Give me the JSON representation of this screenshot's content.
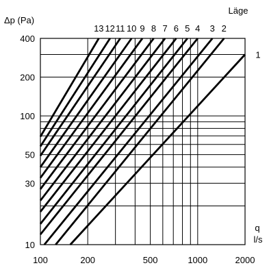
{
  "chart_data": {
    "type": "line",
    "title": "",
    "xlabel": "q",
    "xlabel_unit": "l/s",
    "ylabel": "Δp (Pa)",
    "legend_title": "Läge",
    "x_scale": "log",
    "y_scale": "log",
    "xlim": [
      100,
      2000
    ],
    "ylim": [
      10,
      400
    ],
    "x_ticks": [
      "100",
      "200",
      "500",
      "1000",
      "2000"
    ],
    "y_ticks": [
      "400",
      "200",
      "100",
      "50",
      "30",
      "10"
    ],
    "series": [
      {
        "name": "13",
        "points": [
          [
            100,
            69
          ],
          [
            235,
            400
          ]
        ]
      },
      {
        "name": "12",
        "points": [
          [
            100,
            58
          ],
          [
            277,
            400
          ]
        ]
      },
      {
        "name": "11",
        "points": [
          [
            100,
            49
          ],
          [
            322,
            400
          ]
        ]
      },
      {
        "name": "10",
        "points": [
          [
            100,
            40
          ],
          [
            380,
            400
          ]
        ]
      },
      {
        "name": "9",
        "points": [
          [
            100,
            33
          ],
          [
            445,
            400
          ]
        ]
      },
      {
        "name": "8",
        "points": [
          [
            100,
            27
          ],
          [
            525,
            400
          ]
        ]
      },
      {
        "name": "7",
        "points": [
          [
            100,
            22
          ],
          [
            620,
            400
          ]
        ]
      },
      {
        "name": "6",
        "points": [
          [
            100,
            18
          ],
          [
            730,
            400
          ]
        ]
      },
      {
        "name": "5",
        "points": [
          [
            100,
            14.5
          ],
          [
            860,
            400
          ]
        ]
      },
      {
        "name": "4",
        "points": [
          [
            100,
            12
          ],
          [
            1000,
            400
          ]
        ]
      },
      {
        "name": "3",
        "points": [
          [
            106,
            10
          ],
          [
            1240,
            400
          ]
        ]
      },
      {
        "name": "2",
        "points": [
          [
            125,
            10
          ],
          [
            1470,
            400
          ]
        ]
      },
      {
        "name": "1",
        "points": [
          [
            155,
            10
          ],
          [
            2000,
            300
          ]
        ]
      }
    ]
  }
}
